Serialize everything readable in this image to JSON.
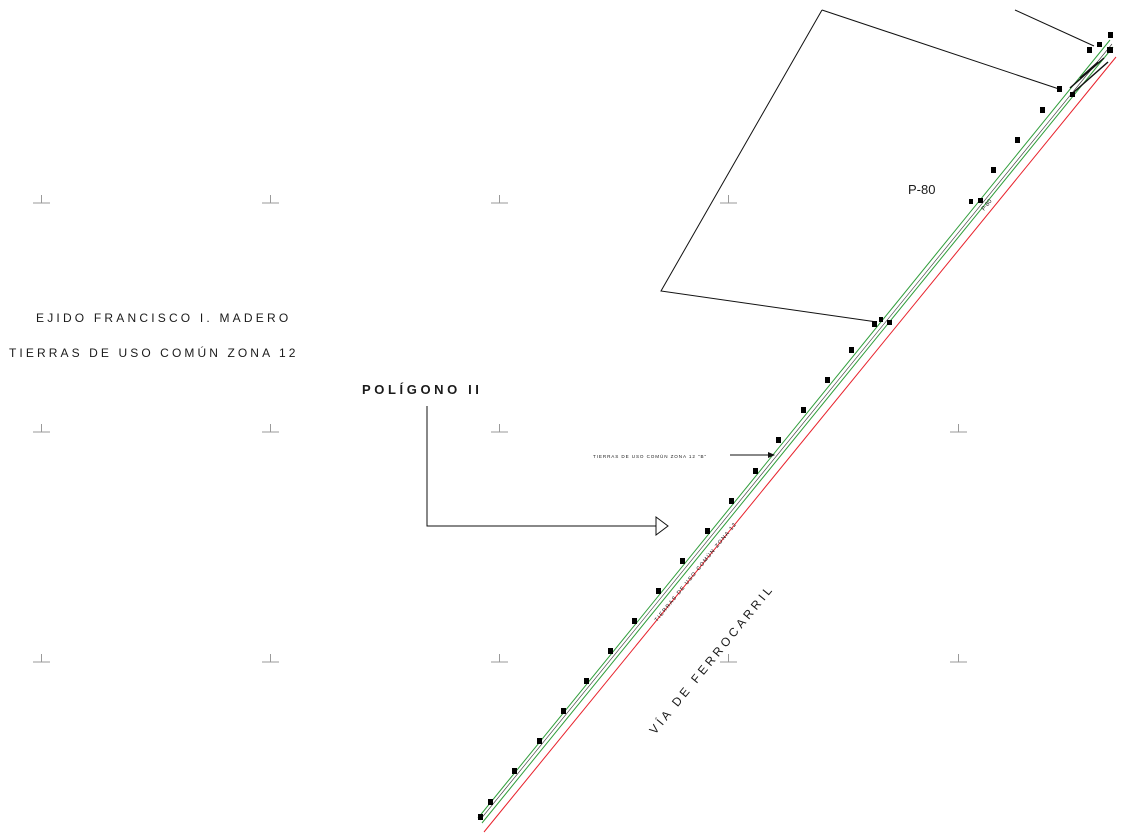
{
  "labels": {
    "ejido": "EJIDO FRANCISCO I. MADERO",
    "tierras": "TIERRAS DE USO COMÚN ZONA 12",
    "poligono": "POLÍGONO II",
    "parcel": "P-80",
    "parcel_small": "P-80",
    "via": "VÍA DE FERROCARRIL",
    "strip_annotation": "TIERRAS DE USO COMÚN ZONA 12 \"B\"",
    "strip_label": "TIERRAS DE USO COMÚN ZONA 12"
  },
  "colors": {
    "railway_line": "#e8202a",
    "strip_lines": "#2f9e3a",
    "boundary": "#111111",
    "markers": "#000000",
    "grid_ticks": "#9a9a9a"
  }
}
